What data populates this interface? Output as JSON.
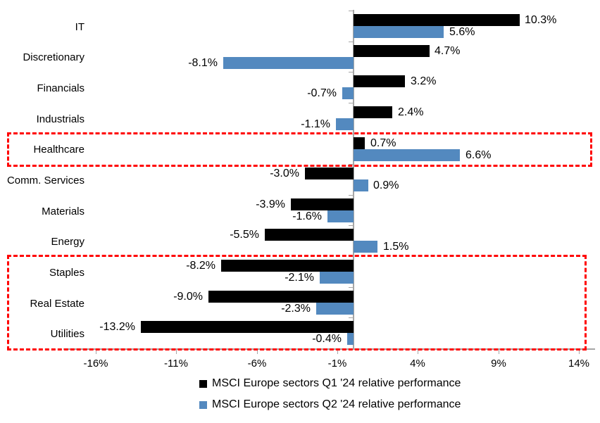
{
  "chart_data": {
    "type": "bar",
    "orientation": "horizontal",
    "title": "",
    "xlabel": "",
    "ylabel": "",
    "categories": [
      "IT",
      "Discretionary",
      "Financials",
      "Industrials",
      "Healthcare",
      "Comm. Services",
      "Materials",
      "Energy",
      "Staples",
      "Real Estate",
      "Utilities"
    ],
    "series": [
      {
        "name": "MSCI Europe sectors Q1 '24 relative performance",
        "color": "#000000",
        "values": [
          10.3,
          4.7,
          3.2,
          2.4,
          0.7,
          -3.0,
          -3.9,
          -5.5,
          -8.2,
          -9.0,
          -13.2
        ]
      },
      {
        "name": "MSCI Europe sectors Q2 '24 relative performance",
        "color": "#5389bf",
        "values": [
          5.6,
          -8.1,
          -0.7,
          -1.1,
          6.6,
          0.9,
          -1.6,
          1.5,
          -2.1,
          -2.3,
          -0.4
        ]
      }
    ],
    "value_label_format": "0.0%",
    "x_axis": {
      "min": -18,
      "max": 15,
      "ticks": [
        {
          "label": "-16%",
          "value": -16
        },
        {
          "label": "-11%",
          "value": -11
        },
        {
          "label": "-6%",
          "value": -6
        },
        {
          "label": "-1%",
          "value": -1
        },
        {
          "label": "4%",
          "value": 4
        },
        {
          "label": "9%",
          "value": 9
        },
        {
          "label": "14%",
          "value": 14
        }
      ]
    },
    "axis_color": "#a6a6a6",
    "highlight_color": "#ff0000",
    "highlights": [
      {
        "name": "healthcare-highlight",
        "from": "Healthcare",
        "to": "Healthcare"
      },
      {
        "name": "defensives-highlight",
        "from": "Staples",
        "to": "Utilities"
      }
    ],
    "legend_position": "bottom",
    "grid": false
  },
  "legend": {
    "items": [
      {
        "label": "MSCI Europe sectors Q1 '24 relative performance",
        "color": "#000000"
      },
      {
        "label": "MSCI Europe sectors Q2 '24 relative performance",
        "color": "#5389bf"
      }
    ]
  }
}
